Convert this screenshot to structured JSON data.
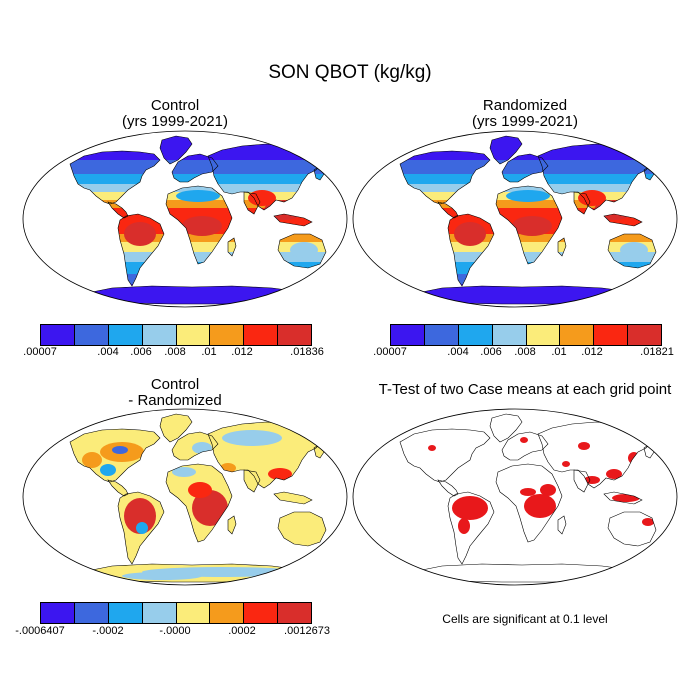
{
  "title": "SON QBOT (kg/kg)",
  "palette": [
    "#3c16f0",
    "#3d68de",
    "#1fa7ee",
    "#97cdeb",
    "#fbec7a",
    "#f59b1c",
    "#fa2711",
    "#d92e2b"
  ],
  "diff_palette": [
    "#3c16f0",
    "#3d68de",
    "#1fa7ee",
    "#97cdeb",
    "#fbec7a",
    "#f59b1c",
    "#fa2711",
    "#d92e2b"
  ],
  "signif_color": "#e8181b",
  "panels": {
    "control": {
      "title_line1": "Control",
      "title_line2": "(yrs 1999-2021)"
    },
    "randomized": {
      "title_line1": "Randomized",
      "title_line2": "(yrs 1999-2021)"
    },
    "difference": {
      "title_line1": "Control",
      "title_line2": "- Randomized"
    },
    "ttest": {
      "title": "T-Test of two Case means at each grid point",
      "note": "Cells are significant at 0.1 level"
    }
  },
  "colorbars": {
    "control": {
      "labels": [
        ".00007",
        ".004",
        ".006",
        ".008",
        ".01",
        ".012",
        ".01836"
      ]
    },
    "randomized": {
      "labels": [
        ".00007",
        ".004",
        ".006",
        ".008",
        ".01",
        ".012",
        ".01821"
      ]
    },
    "difference": {
      "labels": [
        "-.0006407",
        "-.0002",
        "-.0000",
        ".0002",
        ".0012673"
      ]
    }
  }
}
